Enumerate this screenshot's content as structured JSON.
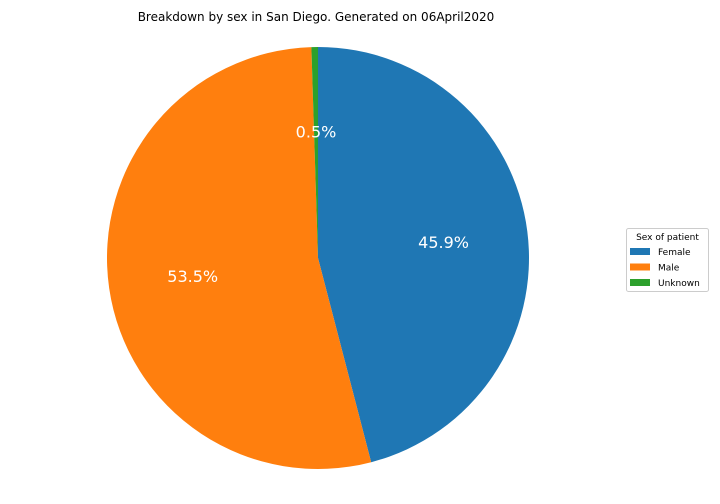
{
  "chart_data": {
    "type": "pie",
    "title": "Breakdown by sex in San Diego. Generated on 06April2020",
    "slices": [
      {
        "label": "Female",
        "value": 45.9,
        "display": "45.9%",
        "color": "#1f77b4"
      },
      {
        "label": "Male",
        "value": 53.5,
        "display": "53.5%",
        "color": "#ff7f0e"
      },
      {
        "label": "Unknown",
        "value": 0.5,
        "display": "0.5%",
        "color": "#2ca02c"
      }
    ],
    "start_angle_deg": 90,
    "direction": "clockwise",
    "legend": {
      "title": "Sex of patient",
      "placement": "right",
      "entries": [
        "Female",
        "Male",
        "Unknown"
      ]
    }
  }
}
